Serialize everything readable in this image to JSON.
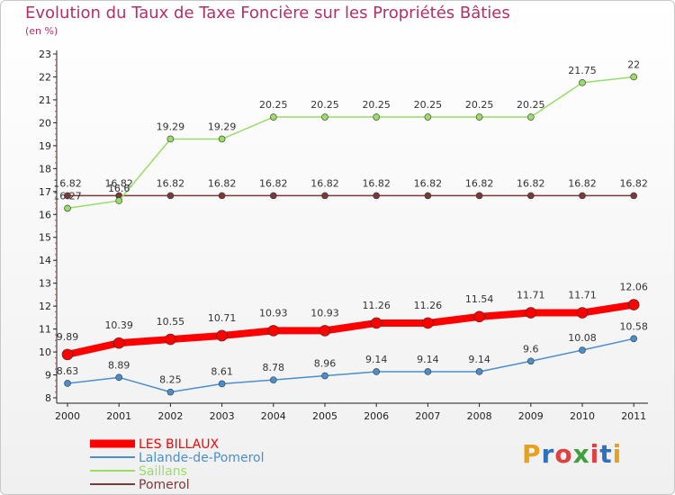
{
  "header": {
    "title": "Evolution du Taux de Taxe Foncière sur les Propriétés Bâties",
    "subtitle": "(en %)"
  },
  "logo": {
    "text": "Proxiti",
    "colors": [
      "#e8a020",
      "#3070c0",
      "#e04040",
      "#40a040",
      "#e04040",
      "#3070c0",
      "#e8a020"
    ]
  },
  "chart_data": {
    "type": "line",
    "title": "Evolution du Taux de Taxe Foncière sur les Propriétés Bâties",
    "ylabel": "(en %)",
    "xlabel": "",
    "categories": [
      "2000",
      "2001",
      "2002",
      "2003",
      "2004",
      "2005",
      "2006",
      "2007",
      "2008",
      "2009",
      "2010",
      "2011"
    ],
    "yticks": [
      8,
      9,
      10,
      11,
      12,
      13,
      14,
      15,
      16,
      17,
      18,
      19,
      20,
      21,
      22,
      23
    ],
    "ylim": [
      8,
      23
    ],
    "grid": "none",
    "legend": "bottom-left",
    "series": [
      {
        "name": "LES BILLAUX",
        "color": "#ff0000",
        "values": [
          9.89,
          10.39,
          10.55,
          10.71,
          10.93,
          10.93,
          11.26,
          11.26,
          11.54,
          11.71,
          11.71,
          12.06
        ],
        "labels": [
          "9.89",
          "10.39",
          "10.55",
          "10.71",
          "10.93",
          "10.93",
          "11.26",
          "11.26",
          "11.54",
          "11.71",
          "11.71",
          "12.06"
        ]
      },
      {
        "name": "Lalande-de-Pomerol",
        "color": "#4a8fcc",
        "values": [
          8.63,
          8.89,
          8.25,
          8.61,
          8.78,
          8.96,
          9.14,
          9.14,
          9.14,
          9.6,
          10.08,
          10.58
        ],
        "labels": [
          "8.63",
          "8.89",
          "8.25",
          "8.61",
          "8.78",
          "8.96",
          "9.14",
          "9.14",
          "9.14",
          "9.6",
          "10.08",
          "10.58"
        ]
      },
      {
        "name": "Saillans",
        "color": "#99dd66",
        "values": [
          16.27,
          16.6,
          19.29,
          19.29,
          20.25,
          20.25,
          20.25,
          20.25,
          20.25,
          20.25,
          21.75,
          22
        ],
        "labels": [
          "16.27",
          "16.6",
          "19.29",
          "19.29",
          "20.25",
          "20.25",
          "20.25",
          "20.25",
          "20.25",
          "20.25",
          "21.75",
          "22"
        ]
      },
      {
        "name": "Pomerol",
        "color": "#7a3a3a",
        "values": [
          16.82,
          16.82,
          16.82,
          16.82,
          16.82,
          16.82,
          16.82,
          16.82,
          16.82,
          16.82,
          16.82,
          16.82
        ],
        "labels": [
          "16.82",
          "16.82",
          "16.82",
          "16.82",
          "16.82",
          "16.82",
          "16.82",
          "16.82",
          "16.82",
          "16.82",
          "16.82",
          "16.82"
        ]
      }
    ]
  }
}
